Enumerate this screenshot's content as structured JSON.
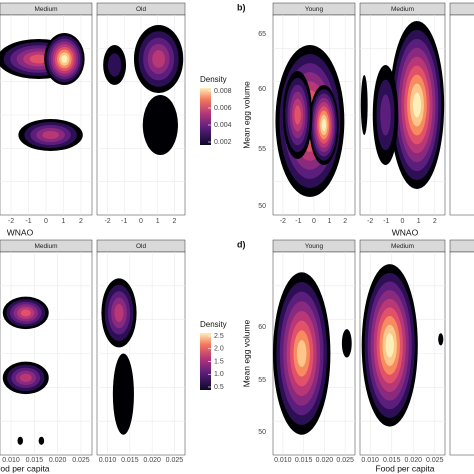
{
  "figure": {
    "panels": [
      {
        "facets": [
          "Medium",
          "Old"
        ],
        "x_label": "WNAO",
        "x_ticks": [
          "-2",
          "-1",
          "0",
          "1",
          "2"
        ]
      },
      {
        "letter": "b)",
        "facets": [
          "Young",
          "Medium"
        ],
        "x_label": "WNAO",
        "x_ticks": [
          "-2",
          "-1",
          "0",
          "1",
          "2"
        ],
        "y_label": "Mean egg volume",
        "y_ticks": [
          "65",
          "60",
          "55",
          "50"
        ]
      },
      {
        "facets": [
          "Medium",
          "Old"
        ],
        "x_label": "Food per capita",
        "x_ticks": [
          "0.010",
          "0.015",
          "0.020",
          "0.025"
        ]
      },
      {
        "letter": "d)",
        "facets": [
          "Young",
          "Medium"
        ],
        "x_label": "Food per capita",
        "x_ticks": [
          "0.010",
          "0.015",
          "0.020",
          "0.025"
        ],
        "y_label": "Mean egg volume",
        "y_ticks": [
          "60",
          "55",
          "50"
        ]
      }
    ],
    "legends": [
      {
        "title": "Density",
        "ticks": [
          "0.008",
          "0.006",
          "0.004",
          "0.002"
        ]
      },
      {
        "title": "Density",
        "ticks": [
          "2.5",
          "2.0",
          "1.5",
          "1.0",
          "0.5"
        ]
      }
    ]
  }
}
